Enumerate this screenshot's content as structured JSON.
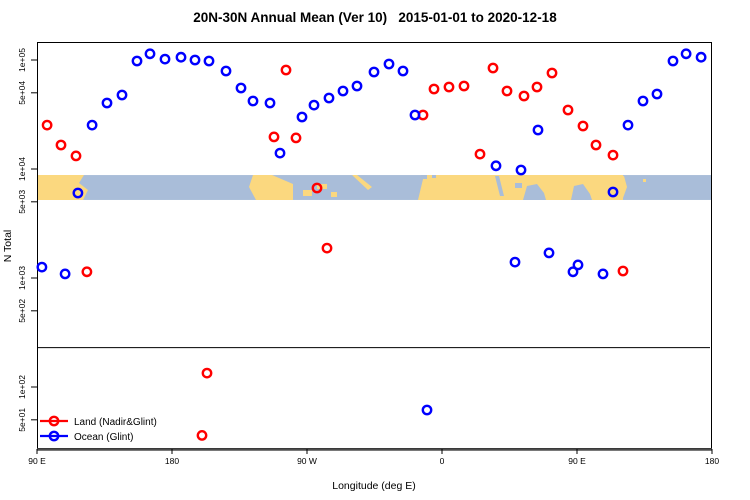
{
  "chart_data": {
    "type": "scatter",
    "title": "20N-30N Annual Mean (Ver 10)   2015-01-01 to 2020-12-18",
    "xlabel": "Longitude (deg E)",
    "ylabel": "N Total",
    "x_axis": {
      "note": "longitude axis starts at 90E and wraps eastward through 180, 90W, 0, 90E to 180",
      "range_deg": [
        90,
        540
      ],
      "ticks": [
        {
          "lon": 90,
          "label": "90 E"
        },
        {
          "lon": 180,
          "label": "180"
        },
        {
          "lon": 270,
          "label": "90 W"
        },
        {
          "lon": 360,
          "label": "0"
        },
        {
          "lon": 450,
          "label": "90 E"
        },
        {
          "lon": 540,
          "label": "180"
        }
      ]
    },
    "y_axis": {
      "scale": "log10",
      "ticks": [
        {
          "n": 50,
          "label": "5e+01"
        },
        {
          "n": 100,
          "label": "1e+02"
        },
        {
          "n": 500,
          "label": "5e+02"
        },
        {
          "n": 1000,
          "label": "1e+03"
        },
        {
          "n": 5000,
          "label": "5e+03"
        },
        {
          "n": 10000,
          "label": "1e+04"
        },
        {
          "n": 50000,
          "label": "5e+04"
        },
        {
          "n": 100000,
          "label": "1e+05"
        }
      ]
    },
    "reference_line_n": 230,
    "series": [
      {
        "name": "Land (Nadir&Glint)",
        "color": "#ff0000",
        "points": [
          [
            96.7,
            25300
          ],
          [
            106,
            16600
          ],
          [
            116,
            13200
          ],
          [
            123.3,
            1140
          ],
          [
            200,
            36
          ],
          [
            203.3,
            134
          ],
          [
            248,
            19700
          ],
          [
            256,
            81000
          ],
          [
            262.7,
            19300
          ],
          [
            276.7,
            6700
          ],
          [
            283.3,
            1880
          ],
          [
            347.3,
            31300
          ],
          [
            354.7,
            54200
          ],
          [
            364.7,
            56500
          ],
          [
            374.7,
            57700
          ],
          [
            385.3,
            13700
          ],
          [
            394,
            84400
          ],
          [
            403.3,
            52000
          ],
          [
            414.7,
            46700
          ],
          [
            423.3,
            56500
          ],
          [
            433.3,
            76000
          ],
          [
            444,
            34800
          ],
          [
            454,
            24800
          ],
          [
            462.7,
            16600
          ],
          [
            474,
            13400
          ],
          [
            480.7,
            1160
          ]
        ]
      },
      {
        "name": "Ocean (Glint)",
        "color": "#0000ff",
        "points": [
          [
            93.3,
            1260
          ],
          [
            108.7,
            1090
          ],
          [
            117.3,
            6020
          ],
          [
            126.7,
            25300
          ],
          [
            136.7,
            40300
          ],
          [
            146.7,
            47700
          ],
          [
            156.7,
            97900
          ],
          [
            165.3,
            114000
          ],
          [
            175.3,
            102000
          ],
          [
            186,
            106000
          ],
          [
            195.3,
            100000
          ],
          [
            204.7,
            97900
          ],
          [
            216,
            79300
          ],
          [
            226,
            55300
          ],
          [
            234,
            42100
          ],
          [
            245.3,
            40300
          ],
          [
            252,
            14000
          ],
          [
            266.7,
            30000
          ],
          [
            274.7,
            38600
          ],
          [
            284.7,
            44800
          ],
          [
            294,
            52000
          ],
          [
            303.3,
            57700
          ],
          [
            314.7,
            77600
          ],
          [
            324.7,
            91900
          ],
          [
            334,
            79300
          ],
          [
            342,
            31300
          ],
          [
            350,
            61.5
          ],
          [
            396,
            10700
          ],
          [
            408.7,
            1400
          ],
          [
            412.7,
            9790
          ],
          [
            424,
            22800
          ],
          [
            431.3,
            1700
          ],
          [
            447.3,
            1140
          ],
          [
            450.7,
            1320
          ],
          [
            467.3,
            1090
          ],
          [
            474,
            6150
          ],
          [
            484,
            25300
          ],
          [
            494,
            42100
          ],
          [
            503.3,
            48800
          ],
          [
            514,
            97900
          ],
          [
            522.7,
            114000
          ],
          [
            532.7,
            106000
          ]
        ]
      }
    ],
    "map_band": {
      "description": "world-map strip (20N-30N latitude band) drawn across plot",
      "n_top": 8800,
      "n_bottom": 5200,
      "ocean_color": "#a9bdd9",
      "land_color": "#fbd87f",
      "land_shapes": [
        [
          [
            37,
            175
          ],
          [
            84,
            175
          ],
          [
            79,
            183
          ],
          [
            88,
            190
          ],
          [
            83,
            200
          ],
          [
            37,
            200
          ]
        ],
        [
          [
            253,
            175
          ],
          [
            272,
            175
          ],
          [
            293,
            184
          ],
          [
            293,
            200
          ],
          [
            256,
            200
          ],
          [
            249,
            187
          ]
        ],
        [
          [
            303,
            190
          ],
          [
            312,
            190
          ],
          [
            312,
            196
          ],
          [
            303,
            196
          ]
        ],
        [
          [
            317,
            184
          ],
          [
            327,
            184
          ],
          [
            327,
            189
          ],
          [
            317,
            189
          ]
        ],
        [
          [
            331,
            192
          ],
          [
            337,
            192
          ],
          [
            337,
            197
          ],
          [
            331,
            197
          ]
        ],
        [
          [
            352,
            175
          ],
          [
            357,
            175
          ],
          [
            372,
            187
          ],
          [
            368,
            190
          ]
        ],
        [
          [
            424,
            175
          ],
          [
            623,
            175
          ],
          [
            623,
            200
          ],
          [
            418,
            200
          ]
        ],
        [
          [
            620,
            176
          ],
          [
            624,
            176
          ],
          [
            627,
            187
          ],
          [
            623,
            198
          ],
          [
            619,
            198
          ]
        ],
        [
          [
            643,
            179
          ],
          [
            646,
            179
          ],
          [
            646,
            182
          ],
          [
            643,
            182
          ]
        ]
      ],
      "ocean_cutouts": [
        [
          [
            495,
            176
          ],
          [
            499,
            176
          ],
          [
            504,
            196
          ],
          [
            500,
            196
          ]
        ],
        [
          [
            515,
            183
          ],
          [
            522,
            183
          ],
          [
            522,
            188
          ],
          [
            515,
            188
          ]
        ],
        [
          [
            523,
            200
          ],
          [
            527,
            186
          ],
          [
            537,
            184
          ],
          [
            544,
            193
          ],
          [
            546,
            200
          ]
        ],
        [
          [
            571,
            200
          ],
          [
            574,
            186
          ],
          [
            583,
            184
          ],
          [
            590,
            194
          ],
          [
            592,
            200
          ]
        ],
        [
          [
            421,
            175
          ],
          [
            427,
            175
          ],
          [
            427,
            179
          ],
          [
            421,
            179
          ]
        ],
        [
          [
            432,
            175
          ],
          [
            436,
            175
          ],
          [
            436,
            178
          ],
          [
            432,
            178
          ]
        ]
      ]
    },
    "legend": {
      "position": "bottom-left"
    },
    "frame_color": "#000000",
    "heavy_axis_color": "#4d4d4d"
  }
}
